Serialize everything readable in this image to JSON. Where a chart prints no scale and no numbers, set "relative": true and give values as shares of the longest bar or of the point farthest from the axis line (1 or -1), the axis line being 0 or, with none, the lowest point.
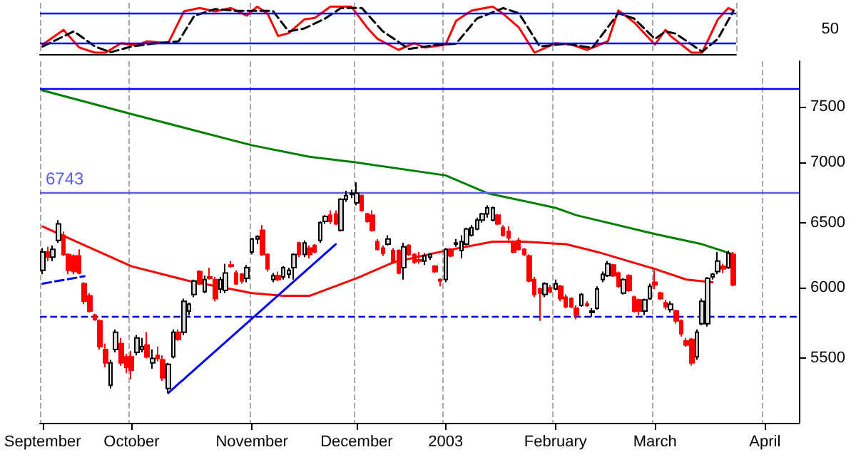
{
  "chart_data": [
    {
      "type": "line",
      "relative": true,
      "grid": "x",
      "marker": "none",
      "annotations": [
        "50"
      ],
      "categories": [
        null,
        null,
        null,
        null,
        null,
        null,
        null,
        null,
        null,
        null,
        null,
        null,
        null,
        null,
        null,
        null,
        null,
        null,
        null,
        null,
        null,
        null,
        null,
        null,
        null,
        null,
        null,
        null,
        null,
        null,
        null,
        null,
        null,
        null,
        null,
        null,
        null,
        null,
        null,
        null,
        null,
        null,
        null,
        null,
        null,
        null,
        null,
        null,
        null,
        null,
        null,
        null,
        null,
        null,
        null,
        null,
        null,
        null,
        null,
        null,
        null,
        null,
        null,
        null,
        null,
        null,
        null,
        null,
        null,
        null,
        null,
        null,
        null,
        null,
        null,
        null,
        null,
        null,
        null,
        null,
        null,
        null,
        null,
        null,
        null,
        null,
        null,
        null,
        null,
        null,
        null,
        null,
        null,
        null,
        null,
        null,
        null,
        null,
        null,
        null,
        null,
        null,
        null,
        null,
        null,
        null,
        null,
        null,
        null,
        null,
        null,
        null,
        null,
        null,
        null,
        null,
        null,
        null,
        null,
        null,
        null,
        null,
        null,
        null,
        null,
        null,
        null,
        null,
        null,
        null,
        null,
        null,
        null
      ],
      "ref_lines": [
        {
          "axis": "y",
          "value": 0.86,
          "color": "#0000ff"
        },
        {
          "axis": "y",
          "value": 0.22,
          "color": "#0000ff"
        }
      ],
      "series": [
        {
          "color": "#ff0000",
          "line_style": "solid",
          "values": [
            0.2,
            null,
            null,
            null,
            0.51,
            null,
            null,
            0.14,
            null,
            null,
            0.03,
            null,
            0.03,
            null,
            null,
            0.23,
            null,
            null,
            0.18,
            null,
            0.27,
            null,
            null,
            null,
            0.23,
            null,
            null,
            0.9,
            null,
            null,
            0.97,
            null,
            null,
            0.9,
            null,
            null,
            0.97,
            null,
            null,
            0.81,
            null,
            1,
            null,
            0.85,
            null,
            0.38,
            null,
            0.44,
            null,
            null,
            0.73,
            null,
            0.76,
            null,
            null,
            1,
            null,
            null,
            null,
            1,
            null,
            null,
            0.56,
            null,
            0.32,
            null,
            null,
            null,
            0.09,
            null,
            null,
            0.23,
            null,
            0.14,
            null,
            null,
            null,
            0.2,
            null,
            0.7,
            null,
            null,
            0.92,
            null,
            null,
            null,
            1,
            null,
            0.85,
            null,
            null,
            0.56,
            null,
            null,
            0.03,
            null,
            null,
            null,
            0.23,
            null,
            null,
            0.2,
            null,
            null,
            0.09,
            null,
            null,
            null,
            0.27,
            null,
            0.92,
            null,
            null,
            0.67,
            null,
            null,
            null,
            0.2,
            null,
            0.51,
            0.38,
            null,
            null,
            null,
            0.03,
            null,
            0.03,
            null,
            null,
            0.73,
            null,
            0.97,
            0.92
          ]
        },
        {
          "color": "#000000",
          "line_style": "dashed",
          "values": [
            0.16,
            null,
            null,
            null,
            null,
            null,
            0.48,
            null,
            null,
            null,
            0.16,
            null,
            null,
            0.04,
            null,
            null,
            null,
            0.16,
            null,
            null,
            null,
            0.22,
            null,
            null,
            null,
            null,
            0.27,
            null,
            null,
            0.81,
            null,
            null,
            null,
            0.95,
            null,
            null,
            null,
            0.91,
            null,
            null,
            null,
            0.91,
            null,
            null,
            0.91,
            null,
            null,
            0.48,
            null,
            null,
            0.54,
            null,
            null,
            null,
            0.75,
            null,
            null,
            0.97,
            null,
            null,
            null,
            0.97,
            null,
            null,
            null,
            0.48,
            null,
            null,
            null,
            null,
            0.11,
            null,
            null,
            null,
            null,
            0.19,
            null,
            null,
            null,
            0.22,
            null,
            null,
            null,
            0.75,
            null,
            null,
            null,
            null,
            0.97,
            null,
            null,
            0.86,
            null,
            null,
            null,
            0.16,
            null,
            null,
            null,
            null,
            0.22,
            null,
            null,
            null,
            null,
            0.13,
            null,
            null,
            null,
            null,
            0.86,
            null,
            null,
            0.75,
            null,
            null,
            null,
            0.32,
            null,
            0.48,
            null,
            0.43,
            null,
            null,
            null,
            null,
            0.05,
            null,
            null,
            0.32,
            null,
            null,
            0.91
          ]
        }
      ]
    },
    {
      "type": "candlestick",
      "ylim": [
        5080,
        7930
      ],
      "yticks": [
        5500,
        6000,
        6500,
        7000,
        7500
      ],
      "log": "y",
      "grid": "x",
      "marker": "none",
      "categories": [
        "September",
        null,
        null,
        null,
        null,
        null,
        null,
        null,
        null,
        null,
        null,
        null,
        null,
        null,
        null,
        null,
        null,
        "October",
        null,
        null,
        null,
        null,
        null,
        null,
        null,
        null,
        null,
        null,
        null,
        null,
        null,
        null,
        null,
        null,
        null,
        null,
        null,
        null,
        null,
        null,
        "November",
        null,
        null,
        null,
        null,
        null,
        null,
        null,
        null,
        null,
        null,
        null,
        null,
        null,
        null,
        null,
        null,
        null,
        null,
        null,
        "December",
        null,
        null,
        null,
        null,
        null,
        null,
        null,
        null,
        null,
        null,
        null,
        null,
        null,
        null,
        null,
        null,
        "2003",
        null,
        null,
        null,
        null,
        null,
        null,
        null,
        null,
        null,
        null,
        null,
        null,
        null,
        null,
        null,
        null,
        null,
        null,
        null,
        null,
        "February",
        null,
        null,
        null,
        null,
        null,
        null,
        null,
        null,
        null,
        null,
        null,
        null,
        null,
        null,
        null,
        null,
        null,
        null,
        "March",
        null,
        null,
        null,
        null,
        null,
        null,
        null,
        null,
        null,
        null,
        null,
        null,
        null,
        null,
        null,
        null,
        null,
        null,
        null,
        null,
        "April",
        null,
        null,
        null,
        null,
        null,
        null
      ],
      "ohlc": [
        [
          6130,
          6300,
          6100,
          6270
        ],
        [
          6270,
          6310,
          6200,
          6230
        ],
        [
          6230,
          6320,
          6200,
          6290
        ],
        [
          6360,
          6520,
          6340,
          6490
        ],
        [
          6400,
          6430,
          6240,
          6250
        ],
        [
          6250,
          6260,
          6100,
          6130
        ],
        [
          6240,
          6250,
          6100,
          6120
        ],
        [
          6240,
          6290,
          6100,
          6110
        ],
        [
          6030,
          6040,
          5880,
          5900
        ],
        [
          5940,
          5960,
          5820,
          5830
        ],
        [
          5800,
          5810,
          5760,
          5770
        ],
        [
          5760,
          5770,
          5560,
          5580
        ],
        [
          5560,
          5600,
          5440,
          5470
        ],
        [
          5320,
          5490,
          5300,
          5470
        ],
        [
          5560,
          5700,
          5540,
          5680
        ],
        [
          5600,
          5640,
          5450,
          5470
        ],
        [
          5510,
          5530,
          5400,
          5440
        ],
        [
          5510,
          5550,
          5360,
          5420
        ],
        [
          5540,
          5660,
          5520,
          5640
        ],
        [
          5560,
          5640,
          5540,
          5580
        ],
        [
          5590,
          5680,
          5500,
          5510
        ],
        [
          5470,
          5560,
          5430,
          5500
        ],
        [
          5520,
          5580,
          5480,
          5500
        ],
        [
          5490,
          5520,
          5350,
          5370
        ],
        [
          5300,
          5470,
          5270,
          5460
        ],
        [
          5510,
          5700,
          5500,
          5680
        ],
        [
          5680,
          5700,
          5620,
          5630
        ],
        [
          5680,
          5920,
          5660,
          5900
        ],
        [
          5830,
          5890,
          5800,
          5880
        ],
        [
          5950,
          6060,
          5930,
          6050
        ],
        [
          6120,
          6130,
          6020,
          6030
        ],
        [
          5970,
          6090,
          5960,
          6060
        ],
        [
          6080,
          6150,
          6060,
          6070
        ],
        [
          6060,
          6080,
          5900,
          5920
        ],
        [
          5990,
          6080,
          5960,
          6060
        ],
        [
          5980,
          6180,
          5960,
          6110
        ],
        [
          6170,
          6200,
          6150,
          6160
        ],
        [
          6110,
          6130,
          6020,
          6030
        ],
        [
          6100,
          6110,
          6030,
          6050
        ],
        [
          6070,
          6170,
          6040,
          6150
        ],
        [
          6270,
          6380,
          6250,
          6370
        ],
        [
          6370,
          6400,
          6330,
          6390
        ],
        [
          6440,
          6480,
          6240,
          6250
        ],
        [
          6250,
          6260,
          6120,
          6140
        ],
        [
          6060,
          6110,
          6040,
          6090
        ],
        [
          6090,
          6120,
          6050,
          6060
        ],
        [
          6080,
          6160,
          6060,
          6150
        ],
        [
          6100,
          6150,
          6070,
          6130
        ],
        [
          6150,
          6260,
          6060,
          6250
        ],
        [
          6340,
          6350,
          6230,
          6250
        ],
        [
          6250,
          6360,
          6230,
          6340
        ],
        [
          6300,
          6320,
          6220,
          6250
        ],
        [
          6320,
          6330,
          6260,
          6270
        ],
        [
          6360,
          6510,
          6340,
          6500
        ],
        [
          6510,
          6560,
          6490,
          6550
        ],
        [
          6560,
          6600,
          6490,
          6510
        ],
        [
          6570,
          6600,
          6480,
          6490
        ],
        [
          6440,
          6700,
          6430,
          6690
        ],
        [
          6690,
          6760,
          6670,
          6720
        ],
        [
          6730,
          6770,
          6700,
          6740
        ],
        [
          6660,
          6830,
          6640,
          6740
        ],
        [
          6720,
          6730,
          6590,
          6600
        ],
        [
          6570,
          6580,
          6500,
          6510
        ],
        [
          6560,
          6600,
          6430,
          6440
        ],
        [
          6350,
          6370,
          6280,
          6290
        ],
        [
          6300,
          6320,
          6240,
          6260
        ],
        [
          6330,
          6400,
          6320,
          6370
        ],
        [
          6280,
          6300,
          6180,
          6190
        ],
        [
          6280,
          6290,
          6100,
          6110
        ],
        [
          6150,
          6340,
          6060,
          6310
        ],
        [
          6320,
          6330,
          6240,
          6250
        ],
        [
          6250,
          6260,
          6180,
          6190
        ],
        [
          6210,
          6270,
          6180,
          6200
        ],
        [
          6200,
          6260,
          6170,
          6240
        ],
        [
          6230,
          6260,
          6210,
          6250
        ],
        [
          6160,
          6170,
          6110,
          6120
        ],
        [
          6060,
          6070,
          6010,
          6050
        ],
        [
          6060,
          6300,
          6040,
          6290
        ],
        [
          6290,
          6300,
          6230,
          6240
        ],
        [
          6330,
          6370,
          6310,
          6340
        ],
        [
          6280,
          6400,
          6220,
          6350
        ],
        [
          6330,
          6460,
          6320,
          6450
        ],
        [
          6400,
          6480,
          6390,
          6460
        ],
        [
          6450,
          6540,
          6440,
          6520
        ],
        [
          6520,
          6580,
          6500,
          6570
        ],
        [
          6570,
          6640,
          6540,
          6620
        ],
        [
          6520,
          6630,
          6510,
          6620
        ],
        [
          6560,
          6570,
          6480,
          6490
        ],
        [
          6460,
          6480,
          6390,
          6400
        ],
        [
          6430,
          6470,
          6360,
          6380
        ],
        [
          6350,
          6360,
          6260,
          6270
        ],
        [
          6360,
          6380,
          6280,
          6290
        ],
        [
          6290,
          6300,
          6240,
          6250
        ],
        [
          6240,
          6250,
          6040,
          6050
        ],
        [
          6060,
          6080,
          5930,
          5950
        ],
        [
          5990,
          6000,
          5760,
          5960
        ],
        [
          5950,
          6040,
          5930,
          6030
        ],
        [
          6000,
          6020,
          5960,
          5970
        ],
        [
          5990,
          6060,
          5980,
          6030
        ],
        [
          6010,
          6020,
          5900,
          5920
        ],
        [
          5930,
          5950,
          5850,
          5860
        ],
        [
          5920,
          5930,
          5850,
          5860
        ],
        [
          5850,
          5870,
          5770,
          5800
        ],
        [
          5870,
          5960,
          5860,
          5950
        ],
        [
          5880,
          5900,
          5860,
          5870
        ],
        [
          5820,
          5850,
          5790,
          5830
        ],
        [
          5850,
          6010,
          5840,
          5990
        ],
        [
          6060,
          6120,
          6040,
          6100
        ],
        [
          6090,
          6200,
          6080,
          6180
        ],
        [
          6170,
          6180,
          6080,
          6090
        ],
        [
          6110,
          6120,
          6000,
          6010
        ],
        [
          5960,
          6070,
          5950,
          6060
        ],
        [
          6090,
          6100,
          5970,
          5980
        ],
        [
          5930,
          5940,
          5820,
          5830
        ],
        [
          5910,
          5920,
          5800,
          5830
        ],
        [
          5830,
          5920,
          5800,
          5910
        ],
        [
          5920,
          6030,
          5910,
          6010
        ],
        [
          6040,
          6130,
          5990,
          6020
        ],
        [
          5960,
          5970,
          5910,
          5920
        ],
        [
          5890,
          5910,
          5840,
          5860
        ],
        [
          5840,
          5900,
          5820,
          5880
        ],
        [
          5830,
          5840,
          5740,
          5760
        ],
        [
          5760,
          5770,
          5650,
          5670
        ],
        [
          5620,
          5640,
          5580,
          5590
        ],
        [
          5630,
          5640,
          5450,
          5470
        ],
        [
          5510,
          5700,
          5490,
          5680
        ],
        [
          5740,
          5920,
          5730,
          5900
        ],
        [
          5740,
          6080,
          5720,
          6070
        ],
        [
          6080,
          6110,
          6060,
          6100
        ],
        [
          6120,
          6270,
          6100,
          6200
        ],
        [
          6160,
          6180,
          6110,
          6140
        ],
        [
          6150,
          6280,
          6140,
          6260
        ],
        [
          6250,
          6270,
          6010,
          6020
        ],
        null,
        null,
        null,
        null,
        null,
        null,
        null,
        null,
        null,
        null,
        null,
        null
      ],
      "ref_lines": [
        {
          "axis": "y",
          "value": 7670,
          "color": "#0000ff",
          "line_style": "solid"
        },
        {
          "axis": "y",
          "value": 6743,
          "label": "6743",
          "color": "#5a5aff",
          "line_style": "solid"
        },
        {
          "axis": "y",
          "value": 5790,
          "color": "#0000cc",
          "line_style": "dashed"
        }
      ],
      "series": [
        {
          "type": "line",
          "color": "#008000",
          "line_style": "solid",
          "values": [
            7650,
            null,
            null,
            null,
            null,
            null,
            null,
            null,
            null,
            null,
            null,
            null,
            null,
            null,
            null,
            null,
            null,
            7430,
            null,
            null,
            null,
            null,
            null,
            null,
            null,
            null,
            null,
            null,
            null,
            null,
            null,
            null,
            null,
            null,
            null,
            null,
            null,
            null,
            null,
            null,
            7150,
            null,
            null,
            null,
            null,
            null,
            null,
            null,
            null,
            null,
            null,
            7050,
            null,
            null,
            null,
            null,
            null,
            null,
            null,
            null,
            7000,
            null,
            null,
            null,
            null,
            null,
            null,
            null,
            null,
            null,
            null,
            null,
            null,
            null,
            null,
            null,
            null,
            6890,
            null,
            null,
            null,
            null,
            null,
            null,
            null,
            6740,
            null,
            null,
            null,
            null,
            null,
            null,
            null,
            null,
            null,
            null,
            null,
            null,
            6620,
            null,
            null,
            null,
            6560,
            null,
            null,
            null,
            null,
            null,
            null,
            null,
            null,
            null,
            null,
            null,
            null,
            null,
            null,
            6410,
            null,
            null,
            null,
            null,
            null,
            null,
            null,
            null,
            6330,
            null,
            null,
            null,
            null,
            null,
            6250,
            null,
            null,
            null,
            null,
            null,
            null,
            null,
            null,
            null,
            null,
            null,
            null
          ]
        },
        {
          "type": "line",
          "color": "#ff0000",
          "line_style": "solid",
          "values": [
            6470,
            null,
            null,
            null,
            null,
            null,
            null,
            null,
            null,
            null,
            null,
            null,
            null,
            null,
            null,
            null,
            null,
            6160,
            null,
            null,
            null,
            null,
            null,
            null,
            null,
            null,
            null,
            null,
            6050,
            null,
            null,
            null,
            null,
            null,
            null,
            null,
            null,
            null,
            null,
            null,
            5960,
            null,
            null,
            null,
            null,
            null,
            5940,
            null,
            null,
            null,
            null,
            5940,
            null,
            null,
            null,
            null,
            null,
            null,
            null,
            null,
            6070,
            null,
            null,
            null,
            null,
            null,
            null,
            6190,
            null,
            null,
            null,
            null,
            null,
            null,
            null,
            null,
            null,
            6280,
            null,
            null,
            null,
            null,
            null,
            null,
            null,
            null,
            6350,
            null,
            null,
            null,
            null,
            null,
            6350,
            null,
            null,
            null,
            null,
            null,
            null,
            null,
            6330,
            null,
            null,
            null,
            null,
            null,
            6270,
            null,
            null,
            null,
            null,
            null,
            null,
            null,
            null,
            null,
            null,
            6140,
            null,
            null,
            null,
            null,
            null,
            6060,
            null,
            null,
            null,
            null,
            6040,
            null,
            null,
            null,
            null,
            null,
            null,
            null,
            null,
            null,
            null,
            null,
            null,
            null,
            null,
            null,
            null
          ]
        },
        {
          "type": "line",
          "color": "#0000ff",
          "line_style": "solid",
          "values": [
            null,
            null,
            null,
            null,
            null,
            null,
            null,
            null,
            null,
            null,
            null,
            null,
            null,
            null,
            null,
            null,
            null,
            null,
            null,
            null,
            null,
            null,
            null,
            null,
            5270,
            null,
            null,
            null,
            null,
            null,
            null,
            null,
            null,
            null,
            null,
            null,
            null,
            null,
            null,
            null,
            null,
            null,
            null,
            null,
            null,
            null,
            null,
            null,
            null,
            null,
            null,
            null,
            null,
            null,
            null,
            null,
            6330,
            null,
            null,
            null,
            null,
            null,
            null,
            null,
            null,
            null,
            null,
            null,
            null,
            null,
            null,
            null,
            null,
            null,
            null,
            null,
            null,
            null,
            null,
            null,
            null,
            null,
            null,
            null,
            null,
            null,
            null,
            null,
            null,
            null,
            null,
            null,
            null,
            null,
            null,
            null,
            null,
            null,
            null,
            null,
            null,
            null,
            null,
            null,
            null,
            null,
            null,
            null,
            null,
            null,
            null,
            null,
            null,
            null,
            null,
            null,
            null,
            null,
            null,
            null,
            null,
            null,
            null,
            null,
            null,
            null,
            null,
            null,
            null,
            null,
            null,
            null,
            null,
            null,
            null,
            null,
            null,
            null,
            null,
            null,
            null,
            null,
            null,
            null,
            null
          ]
        },
        {
          "type": "line",
          "color": "#0000ff",
          "line_style": "dashed",
          "values": [
            6030,
            null,
            null,
            null,
            null,
            null,
            null,
            null,
            6085,
            null,
            null,
            null,
            null,
            null,
            null,
            null,
            null,
            null,
            null,
            null,
            null,
            null,
            null,
            null,
            null,
            null,
            null,
            null,
            null,
            null,
            null,
            null,
            null,
            null,
            null,
            null,
            null,
            null,
            null,
            null,
            null,
            null,
            null,
            null,
            null,
            null,
            null,
            null,
            null,
            null,
            null,
            null,
            null,
            null,
            null,
            null,
            null,
            null,
            null,
            null,
            null,
            null,
            null,
            null,
            null,
            null,
            null,
            null,
            null,
            null,
            null,
            null,
            null,
            null,
            null,
            null,
            null,
            null,
            null,
            null,
            null,
            null,
            null,
            null,
            null,
            null,
            null,
            null,
            null,
            null,
            null,
            null,
            null,
            null,
            null,
            null,
            null,
            null,
            null,
            null,
            null,
            null,
            null,
            null,
            null,
            null,
            null,
            null,
            null,
            null,
            null,
            null,
            null,
            null,
            null,
            null,
            null,
            null,
            null,
            null,
            null,
            null,
            null,
            null,
            null,
            null,
            null,
            null,
            null,
            null,
            null,
            null,
            null,
            null,
            null,
            null,
            null,
            null,
            null,
            null,
            null,
            null,
            null,
            null,
            null
          ]
        }
      ]
    }
  ]
}
